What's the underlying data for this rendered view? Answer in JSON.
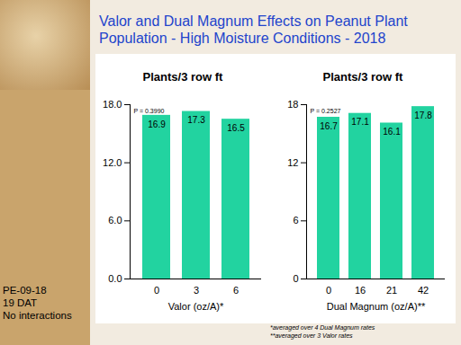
{
  "title": "Valor and Dual Magnum Effects on Peanut Plant Population - High Moisture Conditions - 2018",
  "notes": [
    "PE-09-18",
    "19 DAT",
    "No interactions"
  ],
  "footnotes": [
    "*averaged over 4 Dual Magnum rates",
    "**averaged over 3 Valor rates"
  ],
  "chart_data": [
    {
      "type": "bar",
      "title": "Plants/3 row ft",
      "x_label": "Valor (oz/A)*",
      "categories": [
        "0",
        "3",
        "6"
      ],
      "values": [
        16.9,
        17.3,
        16.5
      ],
      "color": "#22d3a0",
      "ylim": [
        0,
        18
      ],
      "yticks": [
        {
          "value": 0,
          "label": "0.0"
        },
        {
          "value": 6,
          "label": "6.0"
        },
        {
          "value": 12,
          "label": "12.0"
        },
        {
          "value": 18,
          "label": "18.0"
        }
      ],
      "annotations": [
        "P = 0.3990"
      ],
      "data_labels": true,
      "grid": false
    },
    {
      "type": "bar",
      "title": "Plants/3 row ft",
      "x_label": "Dual Magnum (oz/A)**",
      "categories": [
        "0",
        "16",
        "21",
        "42"
      ],
      "values": [
        16.7,
        17.1,
        16.1,
        17.8
      ],
      "color": "#22d3a0",
      "ylim": [
        0,
        18
      ],
      "yticks": [
        0,
        6,
        12,
        18
      ],
      "annotations": [
        "P = 0.2527"
      ],
      "data_labels": true,
      "grid": false
    }
  ]
}
